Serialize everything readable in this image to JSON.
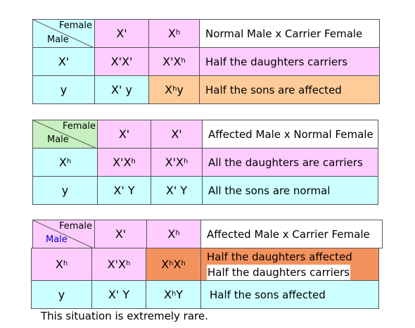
{
  "colors": {
    "cyan": "#ccffff",
    "pink": "#ffccff",
    "orange": "#ffcc99",
    "dark_orange": "#f4925e",
    "green": "#c7f0c0",
    "male_label_blue": "#0000cc"
  },
  "table1": {
    "female_label": "Female",
    "male_label": "Male",
    "header_col1": "X'",
    "header_col2": "X",
    "header_col2_sup": "h",
    "cross_title": "Normal Male x Carrier Female",
    "row1_head": "X'",
    "row1_cell1": "X'X'",
    "row1_cell2": "X'X",
    "row1_cell2_sup": "h",
    "row1_desc": "Half the daughters carriers",
    "row2_head": "y",
    "row2_cell1": "X' y",
    "row2_cell2": "X",
    "row2_cell2_sup": "h",
    "row2_cell2_tail": " y",
    "row2_desc": "Half the sons are affected"
  },
  "table2": {
    "female_label": "Female",
    "male_label": "Male",
    "header_col1": "X'",
    "header_col2": "X'",
    "cross_title": "Affected Male x Normal Female",
    "row1_head": "X",
    "row1_head_sup": "h",
    "row1_cell1": "X'X",
    "row1_cell1_sup": "h",
    "row1_cell2": "X'X",
    "row1_cell2_sup": "h",
    "row1_desc": "All the daughters are carriers",
    "row2_head": "y",
    "row2_cell1": "X' Y",
    "row2_cell2": "X' Y",
    "row2_desc": "All the sons are normal"
  },
  "table3": {
    "female_label": "Female",
    "male_label": "Male",
    "header_col1": "X'",
    "header_col2": "X",
    "header_col2_sup": "h",
    "cross_title": "Affected Male x Carrier Female",
    "row1_head": "X",
    "row1_head_sup": "h",
    "row1_cell1": "X'X",
    "row1_cell1_sup": "h",
    "row1_cell2_a": "X",
    "row1_cell2_a_sup": "h",
    "row1_cell2_b": "X",
    "row1_cell2_b_sup": "h",
    "row1_desc_line1": "Half the daughters affected",
    "row1_desc_line2": "Half the daughters carriers",
    "row2_head": "y",
    "row2_cell1": "X' Y",
    "row2_cell2": "X",
    "row2_cell2_sup": "h",
    "row2_cell2_tail": " Y",
    "row2_desc": "Half the sons affected"
  },
  "footnote": "This situation is extremely rare."
}
